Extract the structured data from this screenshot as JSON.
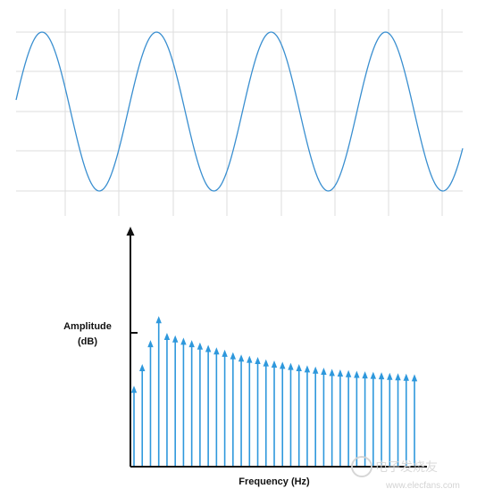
{
  "chart_data": [
    {
      "type": "line",
      "title": "",
      "xlabel": "",
      "ylabel": "",
      "grid": true,
      "series": [
        {
          "color": "#3a8fd0",
          "periods_shown": 3.9,
          "phase": "starts mid-rise"
        }
      ]
    },
    {
      "type": "bar",
      "title": "",
      "xlabel": "Frequency (Hz)",
      "ylabel_line1": "Amplitude",
      "ylabel_line2": "(dB)",
      "grid": false,
      "mark_style": "arrow stems",
      "color": "#2e98dc",
      "values": [
        0.33,
        0.42,
        0.52,
        0.62,
        0.55,
        0.54,
        0.53,
        0.52,
        0.51,
        0.5,
        0.49,
        0.48,
        0.47,
        0.46,
        0.455,
        0.45,
        0.44,
        0.435,
        0.43,
        0.425,
        0.42,
        0.415,
        0.41,
        0.405,
        0.4,
        0.398,
        0.395,
        0.392,
        0.39,
        0.388,
        0.386,
        0.384,
        0.382,
        0.38,
        0.378
      ],
      "ylim": [
        0,
        1
      ]
    }
  ],
  "watermark": {
    "text": "www.elecfans.com",
    "chinese": "电子发烧友"
  }
}
